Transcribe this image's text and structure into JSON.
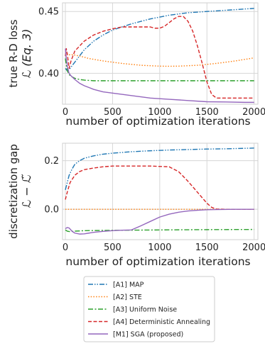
{
  "series_meta": [
    {
      "id": "A1",
      "name": "[A1] MAP",
      "color": "#1f77b4",
      "dash": "7,2,1.5,2,1.5,2"
    },
    {
      "id": "A2",
      "name": "[A2] STE",
      "color": "#ff7f0e",
      "dash": "1.5,2.2"
    },
    {
      "id": "A3",
      "name": "[A3] Uniform Noise",
      "color": "#2ca02c",
      "dash": "7,2.5,2,2.5"
    },
    {
      "id": "A4",
      "name": "[A4] Deterministic Annealing",
      "color": "#d62728",
      "dash": "5,2.5"
    },
    {
      "id": "M1",
      "name": "[M1] SGA (proposed)",
      "color": "#9467bd",
      "dash": ""
    }
  ],
  "chart_data": [
    {
      "type": "line",
      "ylabel": [
        "true R-D loss",
        "ℒ (Eq. 3)"
      ],
      "xlabel": "number of optimization iterations",
      "xlim": [
        -30,
        2040
      ],
      "ylim": [
        0.375,
        0.457
      ],
      "xticks": [
        0,
        500,
        1000,
        1500,
        2000
      ],
      "yticks": [
        0.4,
        0.45
      ],
      "ytick_labels": [
        "0.40",
        "0.45"
      ],
      "grid": true,
      "series": [
        {
          "name": "[A1] MAP",
          "x": [
            0,
            20,
            40,
            60,
            100,
            150,
            200,
            300,
            400,
            500,
            700,
            900,
            1100,
            1300,
            1500,
            1700,
            1900,
            2000
          ],
          "y": [
            0.404,
            0.402,
            0.403,
            0.405,
            0.409,
            0.414,
            0.419,
            0.426,
            0.431,
            0.435,
            0.44,
            0.444,
            0.447,
            0.449,
            0.45,
            0.451,
            0.452,
            0.4525
          ]
        },
        {
          "name": "[A2] STE",
          "x": [
            0,
            20,
            40,
            80,
            150,
            250,
            400,
            600,
            800,
            1000,
            1100,
            1200,
            1400,
            1600,
            1800,
            2000
          ],
          "y": [
            0.418,
            0.416,
            0.415,
            0.415,
            0.414,
            0.412,
            0.41,
            0.408,
            0.4065,
            0.4058,
            0.4057,
            0.4058,
            0.4065,
            0.408,
            0.41,
            0.4125
          ]
        },
        {
          "name": "[A3] Uniform Noise",
          "x": [
            0,
            20,
            50,
            100,
            150,
            200,
            300,
            500,
            800,
            1200,
            1600,
            2000
          ],
          "y": [
            0.412,
            0.402,
            0.398,
            0.396,
            0.395,
            0.3945,
            0.394,
            0.394,
            0.394,
            0.394,
            0.394,
            0.394
          ]
        },
        {
          "name": "[A4] Deterministic Annealing",
          "x": [
            0,
            10,
            25,
            40,
            60,
            100,
            150,
            200,
            300,
            400,
            500,
            600,
            700,
            800,
            900,
            950,
            1000,
            1050,
            1100,
            1150,
            1200,
            1250,
            1300,
            1350,
            1400,
            1450,
            1500,
            1550,
            1600,
            1700,
            1800,
            1900,
            2000
          ],
          "y": [
            0.414,
            0.42,
            0.413,
            0.404,
            0.41,
            0.418,
            0.422,
            0.426,
            0.431,
            0.434,
            0.436,
            0.4375,
            0.4375,
            0.4375,
            0.4375,
            0.4365,
            0.4365,
            0.438,
            0.441,
            0.444,
            0.446,
            0.446,
            0.442,
            0.434,
            0.422,
            0.408,
            0.393,
            0.383,
            0.38,
            0.38,
            0.38,
            0.38,
            0.38
          ]
        },
        {
          "name": "[M1] SGA (proposed)",
          "x": [
            0,
            10,
            25,
            40,
            60,
            100,
            150,
            200,
            300,
            400,
            500,
            700,
            900,
            1100,
            1300,
            1500,
            1700,
            1900,
            2000
          ],
          "y": [
            0.42,
            0.412,
            0.404,
            0.4,
            0.398,
            0.395,
            0.392,
            0.39,
            0.387,
            0.385,
            0.384,
            0.382,
            0.38,
            0.379,
            0.378,
            0.377,
            0.3768,
            0.3765,
            0.3765
          ]
        }
      ]
    },
    {
      "type": "line",
      "ylabel": [
        "discretization gap",
        "ℒ − ℒ̃"
      ],
      "xlabel": "number of optimization iterations",
      "xlim": [
        -30,
        2040
      ],
      "ylim": [
        -0.125,
        0.272
      ],
      "xticks": [
        0,
        500,
        1000,
        1500,
        2000
      ],
      "yticks": [
        0.0,
        0.2
      ],
      "ytick_labels": [
        "0.0",
        "0.2"
      ],
      "grid": true,
      "series": [
        {
          "name": "[A1] MAP",
          "x": [
            0,
            20,
            40,
            70,
            100,
            150,
            200,
            300,
            400,
            500,
            700,
            900,
            1100,
            1300,
            1500,
            1700,
            1900,
            2000
          ],
          "y": [
            0.08,
            0.11,
            0.14,
            0.165,
            0.185,
            0.2,
            0.21,
            0.22,
            0.227,
            0.231,
            0.237,
            0.241,
            0.244,
            0.246,
            0.248,
            0.249,
            0.251,
            0.252
          ]
        },
        {
          "name": "[A2] STE",
          "x": [
            0,
            500,
            1000,
            1500,
            2000
          ],
          "y": [
            0.0,
            0.0,
            0.0,
            0.0,
            0.0
          ]
        },
        {
          "name": "[A3] Uniform Noise",
          "x": [
            0,
            20,
            50,
            100,
            200,
            400,
            700,
            1000,
            1400,
            2000
          ],
          "y": [
            -0.085,
            -0.09,
            -0.092,
            -0.09,
            -0.088,
            -0.087,
            -0.086,
            -0.085,
            -0.084,
            -0.083
          ]
        },
        {
          "name": "[A4] Deterministic Annealing",
          "x": [
            0,
            20,
            50,
            100,
            150,
            200,
            300,
            400,
            500,
            700,
            900,
            1100,
            1200,
            1300,
            1400,
            1500,
            1550,
            1600,
            1700,
            2000
          ],
          "y": [
            0.04,
            0.07,
            0.11,
            0.14,
            0.155,
            0.163,
            0.17,
            0.175,
            0.178,
            0.178,
            0.178,
            0.175,
            0.155,
            0.115,
            0.07,
            0.025,
            0.008,
            0.001,
            0.0,
            0.0
          ]
        },
        {
          "name": "[M1] SGA (proposed)",
          "x": [
            0,
            20,
            40,
            70,
            100,
            150,
            200,
            250,
            300,
            400,
            500,
            600,
            700,
            800,
            900,
            1000,
            1100,
            1200,
            1300,
            1400,
            1500,
            1600,
            1800,
            2000
          ],
          "y": [
            -0.08,
            -0.075,
            -0.077,
            -0.09,
            -0.098,
            -0.102,
            -0.101,
            -0.098,
            -0.095,
            -0.091,
            -0.088,
            -0.086,
            -0.085,
            -0.068,
            -0.05,
            -0.032,
            -0.02,
            -0.012,
            -0.007,
            -0.004,
            -0.002,
            -0.001,
            0.0,
            0.0
          ]
        }
      ]
    }
  ]
}
